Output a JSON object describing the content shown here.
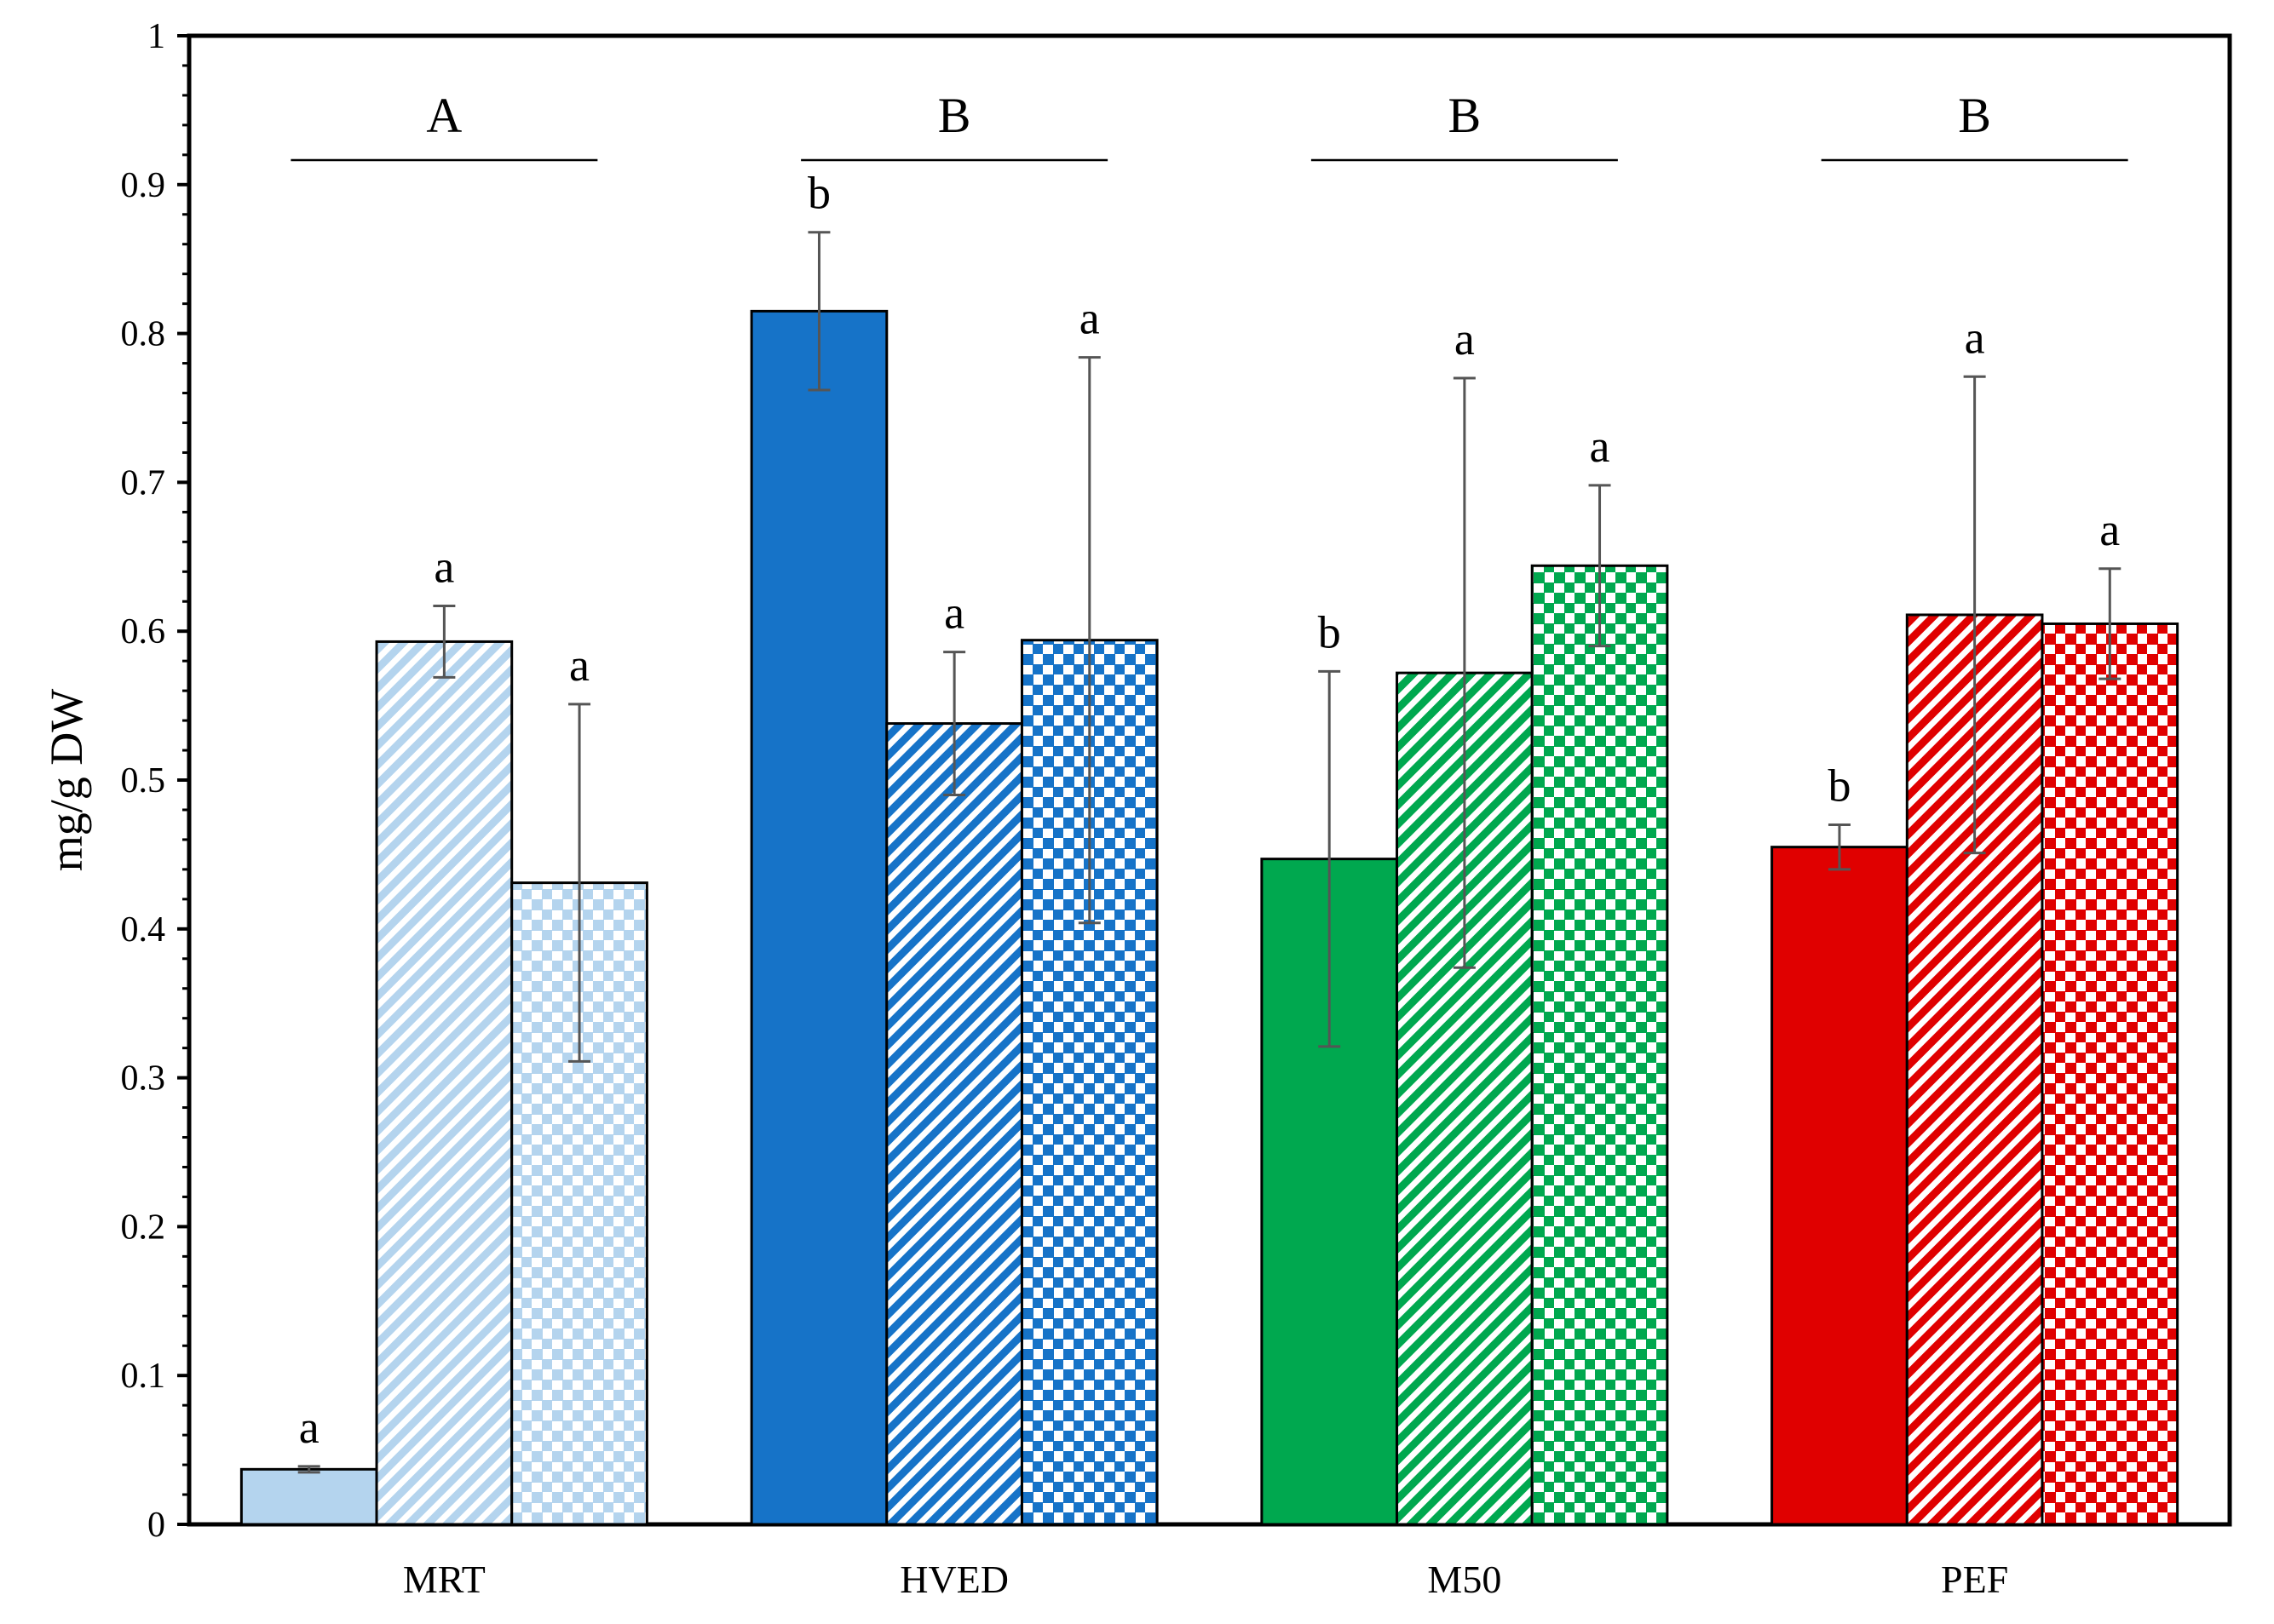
{
  "chart_data": {
    "type": "bar",
    "title": "",
    "xlabel": "",
    "ylabel": "mg/g DW",
    "ylim": [
      0,
      1
    ],
    "yticks": [
      "0",
      "0.1",
      "0.2",
      "0.3",
      "0.4",
      "0.5",
      "0.6",
      "0.7",
      "0.8",
      "0.9",
      "1"
    ],
    "grid": false,
    "legend": "none",
    "categories": [
      "MRT",
      "HVED",
      "M50",
      "PEF"
    ],
    "series_patterns": [
      "solid",
      "diagonal-stripes",
      "checkered-dots"
    ],
    "group_colors": [
      "#b4d4ee",
      "#1673c8",
      "#00a84f",
      "#e00000"
    ],
    "groups": [
      {
        "category": "MRT",
        "letter": "A",
        "bars": [
          {
            "value": 0.037,
            "error": 0.002,
            "label": "a"
          },
          {
            "value": 0.593,
            "error": 0.024,
            "label": "a"
          },
          {
            "value": 0.431,
            "error": 0.12,
            "label": "a"
          }
        ]
      },
      {
        "category": "HVED",
        "letter": "B",
        "bars": [
          {
            "value": 0.815,
            "error": 0.053,
            "label": "b"
          },
          {
            "value": 0.538,
            "error": 0.048,
            "label": "a"
          },
          {
            "value": 0.594,
            "error": 0.19,
            "label": "a"
          }
        ]
      },
      {
        "category": "M50",
        "letter": "B",
        "bars": [
          {
            "value": 0.447,
            "error": 0.126,
            "label": "b"
          },
          {
            "value": 0.572,
            "error": 0.198,
            "label": "a"
          },
          {
            "value": 0.644,
            "error": 0.054,
            "label": "a"
          }
        ]
      },
      {
        "category": "PEF",
        "letter": "B",
        "bars": [
          {
            "value": 0.455,
            "error": 0.015,
            "label": "b"
          },
          {
            "value": 0.611,
            "error": 0.16,
            "label": "a"
          },
          {
            "value": 0.605,
            "error": 0.037,
            "label": "a"
          }
        ]
      }
    ]
  }
}
